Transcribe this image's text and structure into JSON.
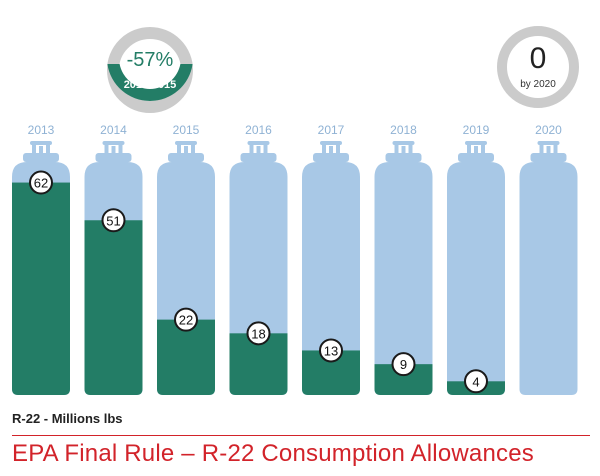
{
  "chart_data": {
    "type": "bar",
    "title": "EPA Final Rule – R-22 Consumption Allowances",
    "ylabel": "R-22 - Millions lbs",
    "categories": [
      "2013",
      "2014",
      "2015",
      "2016",
      "2017",
      "2018",
      "2019",
      "2020"
    ],
    "values": [
      62,
      51,
      22,
      18,
      13,
      9,
      4,
      0
    ],
    "labels": [
      "62",
      "51",
      "22",
      "18",
      "13",
      "9",
      "4",
      ""
    ],
    "ylim": [
      0,
      68
    ]
  },
  "callouts": {
    "reduction": {
      "value": "-57%",
      "period": "2014-2015",
      "fraction": 0.57
    },
    "target": {
      "value": "0",
      "caption": "by 2020"
    }
  },
  "colors": {
    "fill": "#237d66",
    "empty": "#a8c8e6",
    "year": "#8fb2d4",
    "ring_gray": "#cbcbcb",
    "title": "#d2232a"
  }
}
